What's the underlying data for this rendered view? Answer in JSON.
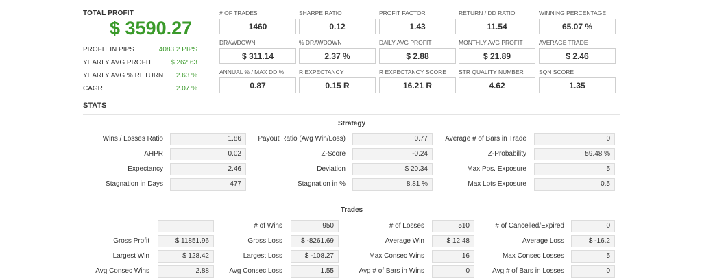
{
  "summary": {
    "total_profit_label": "TOTAL PROFIT",
    "total_profit_value": "$ 3590.27",
    "rows": [
      {
        "label": "PROFIT IN PIPS",
        "value": "4083.2 PIPS"
      },
      {
        "label": "YEARLY AVG PROFIT",
        "value": "$ 262.63"
      },
      {
        "label": "YEARLY AVG % RETURN",
        "value": "2.63 %"
      },
      {
        "label": "CAGR",
        "value": "2.07 %"
      }
    ]
  },
  "metrics": [
    [
      {
        "label": "# OF TRADES",
        "value": "1460"
      },
      {
        "label": "SHARPE RATIO",
        "value": "0.12"
      },
      {
        "label": "PROFIT FACTOR",
        "value": "1.43"
      },
      {
        "label": "RETURN / DD RATIO",
        "value": "11.54"
      },
      {
        "label": "WINNING PERCENTAGE",
        "value": "65.07 %"
      }
    ],
    [
      {
        "label": "DRAWDOWN",
        "value": "$ 311.14"
      },
      {
        "label": "% DRAWDOWN",
        "value": "2.37 %"
      },
      {
        "label": "DAILY AVG PROFIT",
        "value": "$ 2.88"
      },
      {
        "label": "MONTHLY AVG PROFIT",
        "value": "$ 21.89"
      },
      {
        "label": "AVERAGE TRADE",
        "value": "$ 2.46"
      }
    ],
    [
      {
        "label": "ANNUAL % / MAX DD %",
        "value": "0.87"
      },
      {
        "label": "R EXPECTANCY",
        "value": "0.15 R"
      },
      {
        "label": "R EXPECTANCY SCORE",
        "value": "16.21 R"
      },
      {
        "label": "STR QUALITY NUMBER",
        "value": "4.62"
      },
      {
        "label": "SQN SCORE",
        "value": "1.35"
      }
    ]
  ],
  "stats_title": "STATS",
  "strategy": {
    "title": "Strategy",
    "rows": [
      [
        {
          "label": "Wins / Losses Ratio",
          "value": "1.86"
        },
        {
          "label": "Payout Ratio (Avg Win/Loss)",
          "value": "0.77"
        },
        {
          "label": "Average # of Bars in Trade",
          "value": "0"
        }
      ],
      [
        {
          "label": "AHPR",
          "value": "0.02"
        },
        {
          "label": "Z-Score",
          "value": "-0.24"
        },
        {
          "label": "Z-Probability",
          "value": "59.48 %"
        }
      ],
      [
        {
          "label": "Expectancy",
          "value": "2.46"
        },
        {
          "label": "Deviation",
          "value": "$ 20.34"
        },
        {
          "label": "Max Pos. Exposure",
          "value": "5"
        }
      ],
      [
        {
          "label": "Stagnation in Days",
          "value": "477"
        },
        {
          "label": "Stagnation in %",
          "value": "8.81 %"
        },
        {
          "label": "Max Lots Exposure",
          "value": "0.5"
        }
      ]
    ]
  },
  "trades": {
    "title": "Trades",
    "rows": [
      [
        {
          "label": "",
          "value": ""
        },
        {
          "label": "# of Wins",
          "value": "950"
        },
        {
          "label": "# of Losses",
          "value": "510"
        },
        {
          "label": "# of Cancelled/Expired",
          "value": "0"
        }
      ],
      [
        {
          "label": "Gross Profit",
          "value": "$ 11851.96"
        },
        {
          "label": "Gross Loss",
          "value": "$ -8261.69"
        },
        {
          "label": "Average Win",
          "value": "$ 12.48"
        },
        {
          "label": "Average Loss",
          "value": "$ -16.2"
        }
      ],
      [
        {
          "label": "Largest Win",
          "value": "$ 128.42"
        },
        {
          "label": "Largest Loss",
          "value": "$ -108.27"
        },
        {
          "label": "Max Consec Wins",
          "value": "16"
        },
        {
          "label": "Max Consec Losses",
          "value": "5"
        }
      ],
      [
        {
          "label": "Avg Consec Wins",
          "value": "2.88"
        },
        {
          "label": "Avg Consec Loss",
          "value": "1.55"
        },
        {
          "label": "Avg # of Bars in Wins",
          "value": "0"
        },
        {
          "label": "Avg # of Bars in Losses",
          "value": "0"
        }
      ]
    ]
  }
}
